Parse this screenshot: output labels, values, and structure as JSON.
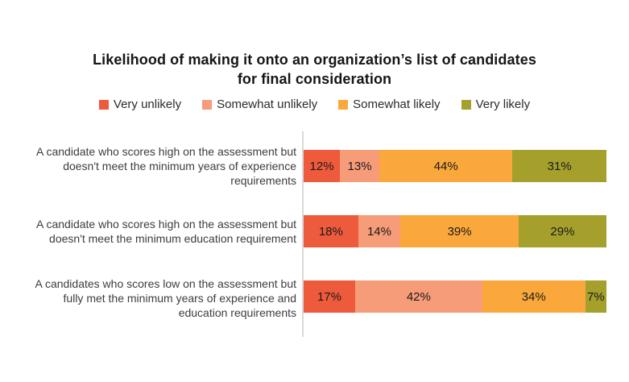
{
  "title": "Likelihood of making it onto an organization’s list of candidates for final consideration",
  "title_lines": [
    "Likelihood of making it onto an organization’s list of candidates",
    "for final consideration"
  ],
  "legend": [
    {
      "label": "Very unlikely",
      "color": "#ee5a3c"
    },
    {
      "label": "Somewhat unlikely",
      "color": "#f79c78"
    },
    {
      "label": "Somewhat likely",
      "color": "#faa83b"
    },
    {
      "label": "Very likely",
      "color": "#a5a02c"
    }
  ],
  "chart_data": {
    "type": "bar",
    "orientation": "horizontal-stacked",
    "title": "Likelihood of making it onto an organization’s list of candidates for final consideration",
    "categories": [
      "A candidate who scores high on the assessment but doesn't meet the minimum years of experience requirements",
      "A candidate who scores high on the assessment but doesn't meet the minimum education requirement",
      "A candidates who scores low on the assessment but fully met the minimum years of experience and education requirements"
    ],
    "series": [
      {
        "name": "Very unlikely",
        "color": "#ee5a3c",
        "values": [
          12,
          18,
          17
        ],
        "labels": [
          "12%",
          "18%",
          "17%"
        ]
      },
      {
        "name": "Somewhat unlikely",
        "color": "#f79c78",
        "values": [
          13,
          14,
          42
        ],
        "labels": [
          "13%",
          "14%",
          "42%"
        ]
      },
      {
        "name": "Somewhat likely",
        "color": "#faa83b",
        "values": [
          44,
          39,
          34
        ],
        "labels": [
          "44%",
          "39%",
          "34%"
        ]
      },
      {
        "name": "Very likely",
        "color": "#a5a02c",
        "values": [
          31,
          29,
          7
        ],
        "labels": [
          "31%",
          "29%",
          "7%"
        ]
      }
    ],
    "xlim": [
      0,
      100
    ],
    "value_format": "percent",
    "legend_position": "top",
    "grid": false,
    "axis_line_color": "#d9d9d9"
  }
}
